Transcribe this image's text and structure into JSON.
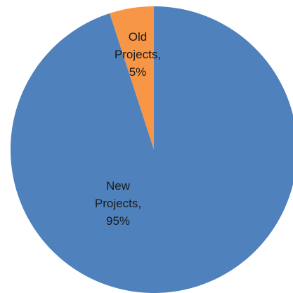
{
  "chart_data": {
    "type": "pie",
    "title": "",
    "slices": [
      {
        "category": "Old Projects",
        "value": 5,
        "color": "#f79646",
        "label_lines": [
          "Old",
          "Projects,",
          "5%"
        ]
      },
      {
        "category": "New Projects",
        "value": 95,
        "color": "#4f81bd",
        "label_lines": [
          "New",
          "Projects,",
          "95%"
        ]
      }
    ],
    "legend": "none",
    "start_angle_deg": 0,
    "direction": "counterclockwise"
  }
}
